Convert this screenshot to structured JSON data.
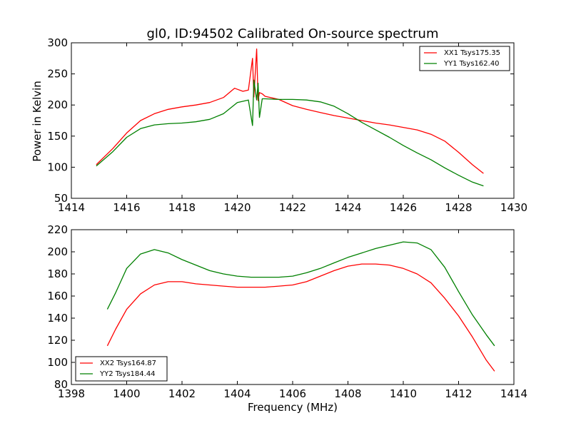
{
  "chart_data": [
    {
      "type": "line",
      "title": "gl0, ID:94502 Calibrated On-source spectrum",
      "xlabel": "",
      "ylabel": "Power in Kelvin",
      "xlim": [
        1414,
        1430
      ],
      "ylim": [
        50,
        300
      ],
      "xticks": [
        "1414",
        "1416",
        "1418",
        "1420",
        "1422",
        "1424",
        "1426",
        "1428",
        "1430"
      ],
      "yticks": [
        "50",
        "100",
        "150",
        "200",
        "250",
        "300"
      ],
      "legend_position": "top-right",
      "series": [
        {
          "name": "XX1 Tsys175.35",
          "color": "#ff0000",
          "x": [
            1414.9,
            1415.5,
            1416.0,
            1416.5,
            1417.0,
            1417.5,
            1418.0,
            1418.5,
            1419.0,
            1419.5,
            1419.9,
            1420.2,
            1420.4,
            1420.55,
            1420.6,
            1420.7,
            1420.75,
            1420.8,
            1420.9,
            1421.0,
            1421.5,
            1422.0,
            1422.5,
            1423.0,
            1423.5,
            1424.0,
            1424.5,
            1425.0,
            1425.5,
            1426.0,
            1426.5,
            1427.0,
            1427.5,
            1428.0,
            1428.5,
            1428.9
          ],
          "values": [
            104,
            130,
            155,
            175,
            186,
            193,
            197,
            200,
            204,
            212,
            227,
            222,
            224,
            275,
            213,
            290,
            207,
            220,
            218,
            214,
            209,
            199,
            193,
            188,
            183,
            179,
            175,
            171,
            168,
            164,
            160,
            153,
            142,
            124,
            104,
            90
          ]
        },
        {
          "name": "YY1 Tsys162.40",
          "color": "#008000",
          "x": [
            1414.9,
            1415.5,
            1416.0,
            1416.5,
            1417.0,
            1417.5,
            1418.0,
            1418.5,
            1419.0,
            1419.5,
            1420.0,
            1420.4,
            1420.55,
            1420.6,
            1420.7,
            1420.75,
            1420.8,
            1420.9,
            1421.0,
            1421.5,
            1422.0,
            1422.5,
            1423.0,
            1423.5,
            1424.0,
            1424.5,
            1425.0,
            1425.5,
            1426.0,
            1426.5,
            1427.0,
            1427.5,
            1428.0,
            1428.5,
            1428.9
          ],
          "values": [
            102,
            125,
            148,
            162,
            168,
            170,
            171,
            173,
            177,
            186,
            204,
            208,
            167,
            240,
            208,
            235,
            180,
            210,
            210,
            209,
            209,
            208,
            205,
            198,
            186,
            172,
            160,
            148,
            135,
            123,
            112,
            99,
            87,
            76,
            70
          ]
        }
      ]
    },
    {
      "type": "line",
      "title": "",
      "xlabel": "Frequency (MHz)",
      "ylabel": "",
      "xlim": [
        1398,
        1414
      ],
      "ylim": [
        80,
        220
      ],
      "xticks": [
        "1398",
        "1400",
        "1402",
        "1404",
        "1406",
        "1408",
        "1410",
        "1412",
        "1414"
      ],
      "yticks": [
        "80",
        "100",
        "120",
        "140",
        "160",
        "180",
        "200",
        "220"
      ],
      "legend_position": "bottom-left",
      "series": [
        {
          "name": "XX2 Tsys164.87",
          "color": "#ff0000",
          "x": [
            1399.3,
            1399.6,
            1400.0,
            1400.5,
            1401.0,
            1401.5,
            1402.0,
            1402.5,
            1403.0,
            1403.5,
            1404.0,
            1404.5,
            1405.0,
            1405.5,
            1406.0,
            1406.5,
            1407.0,
            1407.5,
            1408.0,
            1408.5,
            1409.0,
            1409.5,
            1410.0,
            1410.5,
            1411.0,
            1411.5,
            1412.0,
            1412.5,
            1413.0,
            1413.3
          ],
          "values": [
            115,
            130,
            148,
            162,
            170,
            173,
            173,
            171,
            170,
            169,
            168,
            168,
            168,
            169,
            170,
            173,
            178,
            183,
            187,
            189,
            189,
            188,
            185,
            180,
            172,
            158,
            142,
            123,
            102,
            92
          ]
        },
        {
          "name": "YY2 Tsys184.44",
          "color": "#008000",
          "x": [
            1399.3,
            1399.6,
            1400.0,
            1400.5,
            1401.0,
            1401.5,
            1402.0,
            1402.5,
            1403.0,
            1403.5,
            1404.0,
            1404.5,
            1405.0,
            1405.5,
            1406.0,
            1406.5,
            1407.0,
            1407.5,
            1408.0,
            1408.5,
            1409.0,
            1409.5,
            1410.0,
            1410.5,
            1411.0,
            1411.5,
            1412.0,
            1412.5,
            1413.0,
            1413.3
          ],
          "values": [
            148,
            163,
            185,
            198,
            202,
            199,
            193,
            188,
            183,
            180,
            178,
            177,
            177,
            177,
            178,
            181,
            185,
            190,
            195,
            199,
            203,
            206,
            209,
            208,
            202,
            186,
            164,
            143,
            125,
            115
          ]
        }
      ]
    }
  ]
}
